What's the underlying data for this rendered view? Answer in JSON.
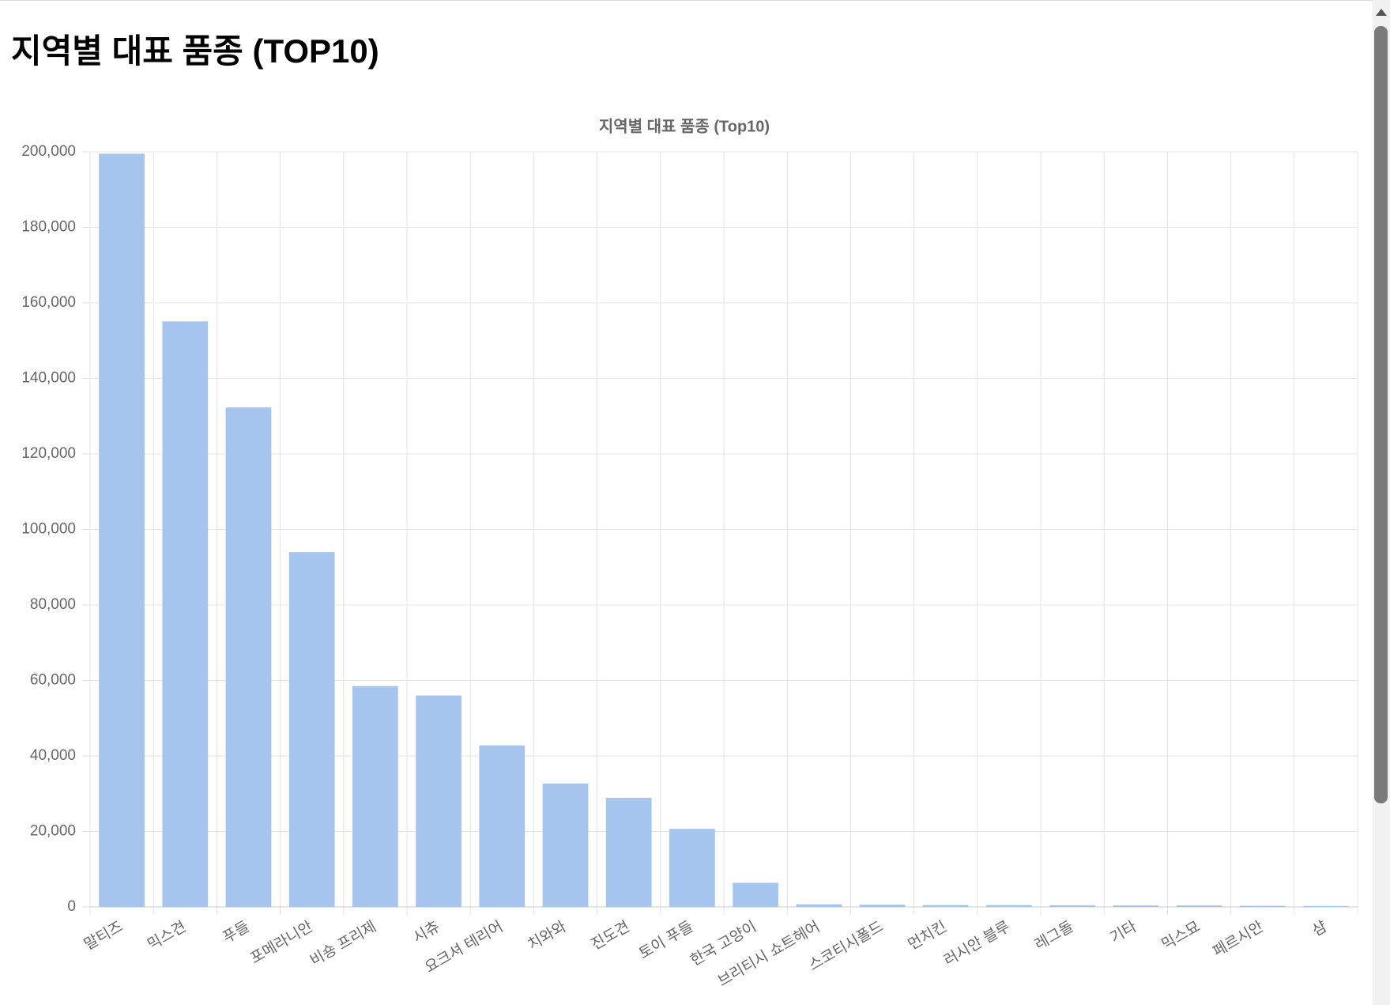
{
  "page_title": "지역별 대표 품종 (TOP10)",
  "chart_data": {
    "type": "bar",
    "title": "지역별 대표 품종 (Top10)",
    "categories": [
      "말티즈",
      "믹스견",
      "푸들",
      "포메라니안",
      "비숑 프리제",
      "시츄",
      "요크셔 테리어",
      "치와와",
      "진도견",
      "토이 푸들",
      "한국 고양이",
      "브리티시 쇼트헤어",
      "스코티시폴드",
      "먼치킨",
      "러시안 블루",
      "레그돌",
      "기타",
      "믹스묘",
      "페르시안",
      "샴"
    ],
    "values": [
      199500,
      155100,
      132300,
      94000,
      58500,
      56000,
      42800,
      32700,
      28900,
      20700,
      6400,
      700,
      600,
      500,
      500,
      450,
      400,
      400,
      300,
      250
    ],
    "color": "#a6c5ee",
    "ylim": [
      0,
      200000
    ],
    "yticks": [
      0,
      {
        "value": 20000,
        "label": "20,000"
      },
      {
        "value": 40000,
        "label": "40,000"
      },
      {
        "value": 60000,
        "label": "60,000"
      },
      {
        "value": 80000,
        "label": "80,000"
      },
      {
        "value": 100000,
        "label": "100,000"
      },
      {
        "value": 120000,
        "label": "120,000"
      },
      {
        "value": 140000,
        "label": "140,000"
      },
      {
        "value": 160000,
        "label": "160,000"
      },
      {
        "value": 180000,
        "label": "180,000"
      },
      {
        "value": 200000,
        "label": "200,000"
      }
    ],
    "grid": true
  }
}
